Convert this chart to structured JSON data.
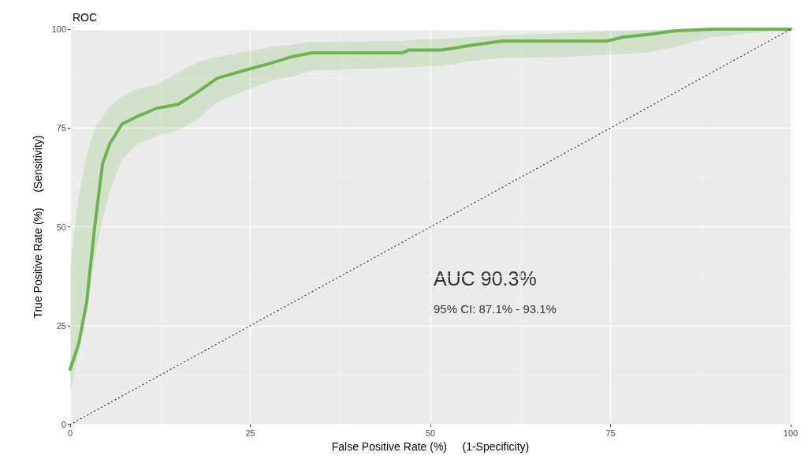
{
  "chart_data": {
    "type": "line",
    "title": "ROC",
    "xlabel": "False Positive Rate (%)     (1-Specificity)",
    "ylabel": "True Positive Rate (%)     (Sensitivity)",
    "xlim": [
      0,
      100
    ],
    "ylim": [
      0,
      100
    ],
    "xticks": [
      0,
      25,
      50,
      75,
      100
    ],
    "yticks": [
      0,
      25,
      50,
      75,
      100
    ],
    "grid": true,
    "legend": false,
    "annotations": [
      "AUC 90.3%",
      "95% CI: 87.1% - 93.1%"
    ],
    "series": [
      {
        "color": "#6db352",
        "line_style": "solid",
        "x": [
          0,
          1.2,
          2.3,
          3.4,
          4.5,
          5.5,
          7.2,
          9.4,
          12,
          15,
          17.6,
          20.4,
          25,
          28,
          30.7,
          33.5,
          46,
          47,
          51.5,
          56,
          60,
          69,
          74.5,
          76.7,
          80,
          84,
          89,
          100
        ],
        "values": [
          14,
          20.5,
          31,
          50,
          66,
          71,
          76,
          78,
          80,
          81,
          84,
          87.6,
          90,
          91.5,
          93,
          94,
          94,
          94.7,
          94.7,
          96,
          97,
          97,
          97,
          98,
          98.6,
          99.6,
          100,
          100
        ],
        "lower": [
          8,
          19,
          32,
          42,
          52,
          59,
          67,
          71,
          73,
          74.5,
          77,
          81.6,
          85,
          87,
          88,
          89.5,
          90.3,
          90.4,
          90.7,
          92,
          92.7,
          93,
          93.5,
          93.8,
          94,
          95.5,
          98,
          100
        ],
        "upper": [
          40,
          58,
          68,
          75,
          78,
          80.5,
          83,
          85,
          86,
          89,
          91.5,
          93,
          94.5,
          95.5,
          96,
          96.8,
          97,
          97.2,
          97.6,
          98,
          98.5,
          99,
          99.5,
          99.6,
          99.8,
          100,
          100,
          100
        ]
      },
      {
        "color": "#333333",
        "line_style": "dotted",
        "x": [
          0,
          100
        ],
        "values": [
          0,
          100
        ]
      }
    ]
  }
}
